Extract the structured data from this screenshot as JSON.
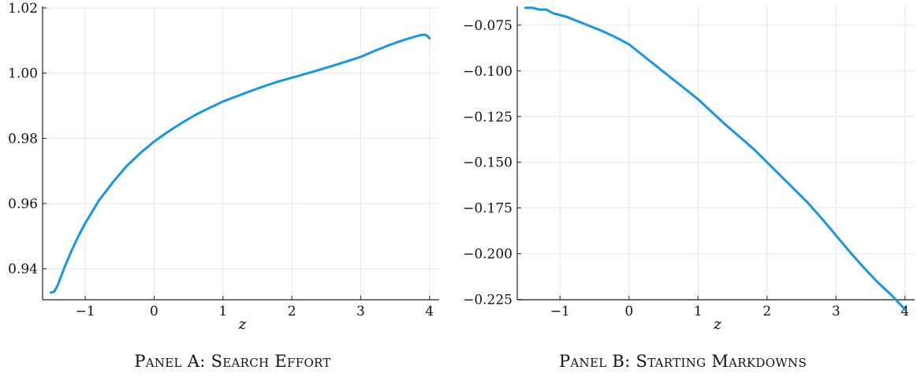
{
  "chart_data": [
    {
      "type": "line",
      "caption": "Panel A: Search Effort",
      "xlabel": "z",
      "ylabel": "",
      "xlim": [
        -1.62,
        4.14
      ],
      "ylim": [
        0.9305,
        1.0205
      ],
      "xticks": [
        -1,
        0,
        1,
        2,
        3,
        4
      ],
      "xtick_labels": [
        "−1",
        "0",
        "1",
        "2",
        "3",
        "4"
      ],
      "yticks": [
        0.94,
        0.96,
        0.98,
        1.0,
        1.02
      ],
      "ytick_labels": [
        "0.94",
        "0.96",
        "0.98",
        "1.00",
        "1.02"
      ],
      "grid": true,
      "color": "#1696e8",
      "series": [
        {
          "x": [
            -1.5,
            -1.45,
            -1.4,
            -1.3,
            -1.2,
            -1.1,
            -1.0,
            -0.8,
            -0.6,
            -0.4,
            -0.2,
            0.0,
            0.2,
            0.4,
            0.6,
            0.8,
            1.0,
            1.2,
            1.4,
            1.6,
            1.8,
            2.0,
            2.2,
            2.4,
            2.6,
            2.8,
            3.0,
            3.2,
            3.4,
            3.6,
            3.8,
            3.9,
            3.95,
            4.0
          ],
          "y": [
            0.9327,
            0.933,
            0.935,
            0.9405,
            0.9455,
            0.95,
            0.954,
            0.961,
            0.9665,
            0.9715,
            0.9755,
            0.979,
            0.982,
            0.9847,
            0.9872,
            0.9893,
            0.9913,
            0.9929,
            0.9945,
            0.996,
            0.9974,
            0.9986,
            0.9998,
            1.001,
            1.0023,
            1.0036,
            1.005,
            1.0068,
            1.0085,
            1.01,
            1.0113,
            1.0118,
            1.0117,
            1.0107
          ]
        }
      ]
    },
    {
      "type": "line",
      "caption": "Panel B: Starting Markdowns",
      "xlabel": "z",
      "ylabel": "",
      "xlim": [
        -1.62,
        4.14
      ],
      "ylim": [
        -0.2252,
        -0.0647
      ],
      "xticks": [
        -1,
        0,
        1,
        2,
        3,
        4
      ],
      "xtick_labels": [
        "−1",
        "0",
        "1",
        "2",
        "3",
        "4"
      ],
      "yticks": [
        -0.225,
        -0.2,
        -0.175,
        -0.15,
        -0.125,
        -0.1,
        -0.075
      ],
      "ytick_labels": [
        "−0.225",
        "−0.200",
        "−0.175",
        "−0.150",
        "−0.125",
        "−0.100",
        "−0.075"
      ],
      "grid": true,
      "color": "#1696e8",
      "series": [
        {
          "x": [
            -1.5,
            -1.4,
            -1.35,
            -1.3,
            -1.2,
            -1.15,
            -1.1,
            -1.0,
            -0.9,
            -0.8,
            -0.6,
            -0.4,
            -0.2,
            0.0,
            0.2,
            0.4,
            0.6,
            0.8,
            1.0,
            1.2,
            1.4,
            1.6,
            1.8,
            2.0,
            2.2,
            2.4,
            2.6,
            2.8,
            3.0,
            3.2,
            3.4,
            3.6,
            3.8,
            3.9,
            4.0
          ],
          "y": [
            -0.0655,
            -0.0655,
            -0.066,
            -0.0665,
            -0.0665,
            -0.0675,
            -0.0685,
            -0.0695,
            -0.0705,
            -0.072,
            -0.075,
            -0.078,
            -0.0815,
            -0.0855,
            -0.0915,
            -0.0975,
            -0.1035,
            -0.1095,
            -0.1155,
            -0.1225,
            -0.1295,
            -0.136,
            -0.1425,
            -0.15,
            -0.1575,
            -0.165,
            -0.1725,
            -0.181,
            -0.19,
            -0.199,
            -0.2075,
            -0.2155,
            -0.2225,
            -0.2265,
            -0.2305
          ]
        }
      ]
    }
  ]
}
